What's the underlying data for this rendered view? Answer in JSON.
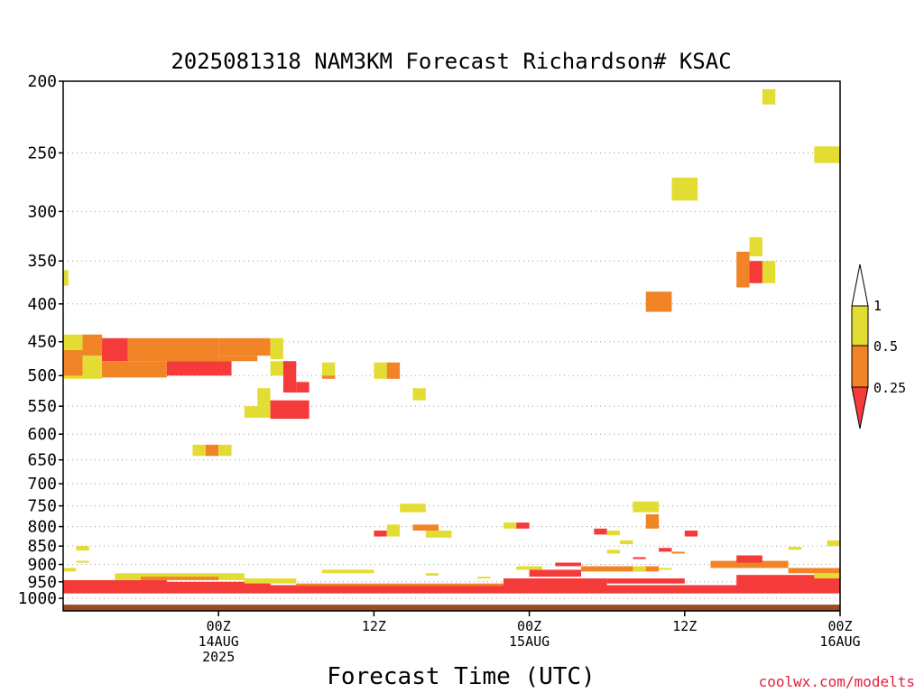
{
  "chart_data": {
    "type": "heatmap",
    "title": "2025081318 NAM3KM Forecast Richardson# KSAC",
    "xlabel": "Forecast Time (UTC)",
    "ylabel": "",
    "y_axis": {
      "scale": "log",
      "reversed": true,
      "units": "hPa",
      "ylim": [
        1040,
        200
      ],
      "ticks": [
        "200",
        "250",
        "300",
        "350",
        "400",
        "450",
        "500",
        "550",
        "600",
        "650",
        "700",
        "750",
        "800",
        "850",
        "900",
        "950",
        "1000"
      ]
    },
    "x_axis": {
      "units": "forecast hour",
      "xlim": [
        -6,
        54
      ],
      "ticks": [
        {
          "hour": 6,
          "lines": [
            "00Z",
            "14AUG",
            "2025"
          ]
        },
        {
          "hour": 18,
          "lines": [
            "12Z"
          ]
        },
        {
          "hour": 30,
          "lines": [
            "00Z",
            "15AUG"
          ]
        },
        {
          "hour": 42,
          "lines": [
            "12Z"
          ]
        },
        {
          "hour": 54,
          "lines": [
            "00Z",
            "16AUG"
          ]
        }
      ]
    },
    "grid": true,
    "legend": {
      "placement": "right",
      "levels": [
        "1",
        "0.5",
        "0.25"
      ],
      "classes": [
        {
          "name": "0.5-1",
          "color": "#e3dc33"
        },
        {
          "name": "0.25-0.5",
          "color": "#f08427"
        },
        {
          "name": "<0.25",
          "color": "#f53a3a"
        }
      ]
    },
    "ground_color": "#9a4a1c",
    "color_classes": {
      "y": "#e3dc33",
      "o": "#f08427",
      "r": "#f53a3a"
    },
    "cells": [
      {
        "t0": -6,
        "t1": -5.6,
        "p0": 360,
        "p1": 378,
        "c": "y"
      },
      {
        "t0": -6,
        "t1": -4.5,
        "p0": 440,
        "p1": 505,
        "c": "y"
      },
      {
        "t0": -6,
        "t1": -4.5,
        "p0": 462,
        "p1": 500,
        "c": "o"
      },
      {
        "t0": -4.5,
        "t1": -3,
        "p0": 440,
        "p1": 470,
        "c": "o"
      },
      {
        "t0": -4.5,
        "t1": -3,
        "p0": 470,
        "p1": 505,
        "c": "y"
      },
      {
        "t0": -3,
        "t1": -1,
        "p0": 445,
        "p1": 478,
        "c": "r"
      },
      {
        "t0": -3,
        "t1": 2,
        "p0": 478,
        "p1": 503,
        "c": "o"
      },
      {
        "t0": -1,
        "t1": 6,
        "p0": 445,
        "p1": 478,
        "c": "o"
      },
      {
        "t0": 6,
        "t1": 10,
        "p0": 445,
        "p1": 470,
        "c": "o"
      },
      {
        "t0": 10,
        "t1": 11,
        "p0": 445,
        "p1": 475,
        "c": "y"
      },
      {
        "t0": 2,
        "t1": 7,
        "p0": 478,
        "p1": 500,
        "c": "r"
      },
      {
        "t0": 6,
        "t1": 9,
        "p0": 470,
        "p1": 478,
        "c": "o"
      },
      {
        "t0": 10,
        "t1": 11,
        "p0": 478,
        "p1": 500,
        "c": "y"
      },
      {
        "t0": 11,
        "t1": 12,
        "p0": 478,
        "p1": 527,
        "c": "r"
      },
      {
        "t0": 12,
        "t1": 13,
        "p0": 510,
        "p1": 527,
        "c": "r"
      },
      {
        "t0": 8,
        "t1": 10,
        "p0": 550,
        "p1": 570,
        "c": "y"
      },
      {
        "t0": 9,
        "t1": 10,
        "p0": 520,
        "p1": 550,
        "c": "y"
      },
      {
        "t0": 10,
        "t1": 13,
        "p0": 540,
        "p1": 572,
        "c": "r"
      },
      {
        "t0": 4,
        "t1": 5,
        "p0": 620,
        "p1": 642,
        "c": "y"
      },
      {
        "t0": 5,
        "t1": 6,
        "p0": 620,
        "p1": 642,
        "c": "o"
      },
      {
        "t0": 6,
        "t1": 7,
        "p0": 620,
        "p1": 642,
        "c": "y"
      },
      {
        "t0": 14,
        "t1": 15,
        "p0": 480,
        "p1": 500,
        "c": "y"
      },
      {
        "t0": 14,
        "t1": 15,
        "p0": 500,
        "p1": 505,
        "c": "o"
      },
      {
        "t0": 18,
        "t1": 19,
        "p0": 480,
        "p1": 505,
        "c": "y"
      },
      {
        "t0": 19,
        "t1": 20,
        "p0": 480,
        "p1": 505,
        "c": "o"
      },
      {
        "t0": 21,
        "t1": 22,
        "p0": 520,
        "p1": 540,
        "c": "y"
      },
      {
        "t0": 20,
        "t1": 22,
        "p0": 745,
        "p1": 765,
        "c": "y"
      },
      {
        "t0": 18,
        "t1": 19,
        "p0": 810,
        "p1": 825,
        "c": "r"
      },
      {
        "t0": 19,
        "t1": 20,
        "p0": 795,
        "p1": 825,
        "c": "y"
      },
      {
        "t0": 21,
        "t1": 23,
        "p0": 795,
        "p1": 810,
        "c": "o"
      },
      {
        "t0": 22,
        "t1": 24,
        "p0": 810,
        "p1": 828,
        "c": "y"
      },
      {
        "t0": 28,
        "t1": 29,
        "p0": 790,
        "p1": 805,
        "c": "y"
      },
      {
        "t0": 29,
        "t1": 30,
        "p0": 790,
        "p1": 805,
        "c": "r"
      },
      {
        "t0": 38,
        "t1": 40,
        "p0": 740,
        "p1": 765,
        "c": "y"
      },
      {
        "t0": 39,
        "t1": 40,
        "p0": 770,
        "p1": 805,
        "c": "o"
      },
      {
        "t0": 39,
        "t1": 41,
        "p0": 385,
        "p1": 410,
        "c": "o"
      },
      {
        "t0": 41,
        "t1": 43,
        "p0": 270,
        "p1": 290,
        "c": "y"
      },
      {
        "t0": 48,
        "t1": 49,
        "p0": 205,
        "p1": 215,
        "c": "y"
      },
      {
        "t0": 47,
        "t1": 48,
        "p0": 325,
        "p1": 345,
        "c": "y"
      },
      {
        "t0": 46,
        "t1": 47,
        "p0": 340,
        "p1": 380,
        "c": "o"
      },
      {
        "t0": 47,
        "t1": 48,
        "p0": 350,
        "p1": 375,
        "c": "r"
      },
      {
        "t0": 48,
        "t1": 49,
        "p0": 350,
        "p1": 375,
        "c": "y"
      },
      {
        "t0": 52,
        "t1": 55,
        "p0": 245,
        "p1": 258,
        "c": "y"
      },
      {
        "t0": 54,
        "t1": 56,
        "p0": 258,
        "p1": 262,
        "c": "y"
      },
      {
        "t0": 56,
        "t1": 57,
        "p0": 262,
        "p1": 290,
        "c": "y"
      },
      {
        "t0": 57,
        "t1": 58,
        "p0": 262,
        "p1": 270,
        "c": "y"
      },
      {
        "t0": 57,
        "t1": 58,
        "p0": 270,
        "p1": 290,
        "c": "o"
      },
      {
        "t0": 57,
        "t1": 58,
        "p0": 275,
        "p1": 285,
        "c": "r"
      },
      {
        "t0": 58,
        "t1": 60,
        "p0": 270,
        "p1": 290,
        "c": "y"
      },
      {
        "t0": 57,
        "t1": 58,
        "p0": 295,
        "p1": 320,
        "c": "y"
      },
      {
        "t0": 56,
        "t1": 57,
        "p0": 355,
        "p1": 380,
        "c": "y"
      },
      {
        "t0": 35,
        "t1": 36,
        "p0": 805,
        "p1": 820,
        "c": "r"
      },
      {
        "t0": 36,
        "t1": 37,
        "p0": 810,
        "p1": 822,
        "c": "y"
      },
      {
        "t0": 37,
        "t1": 38,
        "p0": 835,
        "p1": 845,
        "c": "y"
      },
      {
        "t0": 42,
        "t1": 43,
        "p0": 810,
        "p1": 825,
        "c": "r"
      },
      {
        "t0": 40,
        "t1": 41,
        "p0": 855,
        "p1": 865,
        "c": "r"
      },
      {
        "t0": 41,
        "t1": 42,
        "p0": 865,
        "p1": 870,
        "c": "o"
      },
      {
        "t0": 36,
        "t1": 37,
        "p0": 860,
        "p1": 870,
        "c": "y"
      },
      {
        "t0": 53,
        "t1": 55,
        "p0": 835,
        "p1": 850,
        "c": "y"
      },
      {
        "t0": 55,
        "t1": 56,
        "p0": 840,
        "p1": 860,
        "c": "y"
      },
      {
        "t0": 50,
        "t1": 51,
        "p0": 852,
        "p1": 860,
        "c": "y"
      },
      {
        "t0": -5,
        "t1": -4,
        "p0": 850,
        "p1": 862,
        "c": "y"
      },
      {
        "t0": -5,
        "t1": -4,
        "p0": 890,
        "p1": 895,
        "c": "y"
      },
      {
        "t0": -6,
        "t1": -5,
        "p0": 910,
        "p1": 920,
        "c": "y"
      },
      {
        "t0": -6,
        "t1": 60,
        "p0": 960,
        "p1": 985,
        "c": "r"
      },
      {
        "t0": -6,
        "t1": 2,
        "p0": 945,
        "p1": 960,
        "c": "r"
      },
      {
        "t0": 2,
        "t1": 10,
        "p0": 950,
        "p1": 962,
        "c": "r"
      },
      {
        "t0": 28,
        "t1": 36,
        "p0": 940,
        "p1": 960,
        "c": "r"
      },
      {
        "t0": 46,
        "t1": 60,
        "p0": 930,
        "p1": 960,
        "c": "r"
      },
      {
        "t0": -2,
        "t1": 8,
        "p0": 925,
        "p1": 945,
        "c": "y"
      },
      {
        "t0": 0,
        "t1": 6,
        "p0": 935,
        "p1": 945,
        "c": "o"
      },
      {
        "t0": 8,
        "t1": 12,
        "p0": 940,
        "p1": 955,
        "c": "y"
      },
      {
        "t0": 12,
        "t1": 28,
        "p0": 955,
        "p1": 962,
        "c": "o"
      },
      {
        "t0": 30,
        "t1": 34,
        "p0": 915,
        "p1": 935,
        "c": "r"
      },
      {
        "t0": 34,
        "t1": 40,
        "p0": 905,
        "p1": 920,
        "c": "o"
      },
      {
        "t0": 36,
        "t1": 42,
        "p0": 940,
        "p1": 955,
        "c": "r"
      },
      {
        "t0": 44,
        "t1": 50,
        "p0": 890,
        "p1": 910,
        "c": "o"
      },
      {
        "t0": 46,
        "t1": 48,
        "p0": 875,
        "p1": 895,
        "c": "r"
      },
      {
        "t0": 50,
        "t1": 58,
        "p0": 910,
        "p1": 925,
        "c": "o"
      },
      {
        "t0": 52,
        "t1": 56,
        "p0": 925,
        "p1": 940,
        "c": "y"
      },
      {
        "t0": 55,
        "t1": 58,
        "p0": 905,
        "p1": 920,
        "c": "r"
      },
      {
        "t0": 58,
        "t1": 60,
        "p0": 920,
        "p1": 935,
        "c": "y"
      },
      {
        "t0": 14,
        "t1": 18,
        "p0": 915,
        "p1": 925,
        "c": "y"
      },
      {
        "t0": 22,
        "t1": 23,
        "p0": 925,
        "p1": 932,
        "c": "y"
      },
      {
        "t0": 26,
        "t1": 27,
        "p0": 935,
        "p1": 940,
        "c": "y"
      },
      {
        "t0": 29,
        "t1": 31,
        "p0": 905,
        "p1": 915,
        "c": "y"
      },
      {
        "t0": 32,
        "t1": 34,
        "p0": 895,
        "p1": 905,
        "c": "r"
      },
      {
        "t0": 38,
        "t1": 39,
        "p0": 905,
        "p1": 920,
        "c": "y"
      },
      {
        "t0": 38,
        "t1": 39,
        "p0": 880,
        "p1": 885,
        "c": "r"
      },
      {
        "t0": 40,
        "t1": 41,
        "p0": 910,
        "p1": 915,
        "c": "y"
      }
    ]
  },
  "legend_labels": [
    "1",
    "0.5",
    "0.25"
  ],
  "credit": "coolwx.com/modelts"
}
